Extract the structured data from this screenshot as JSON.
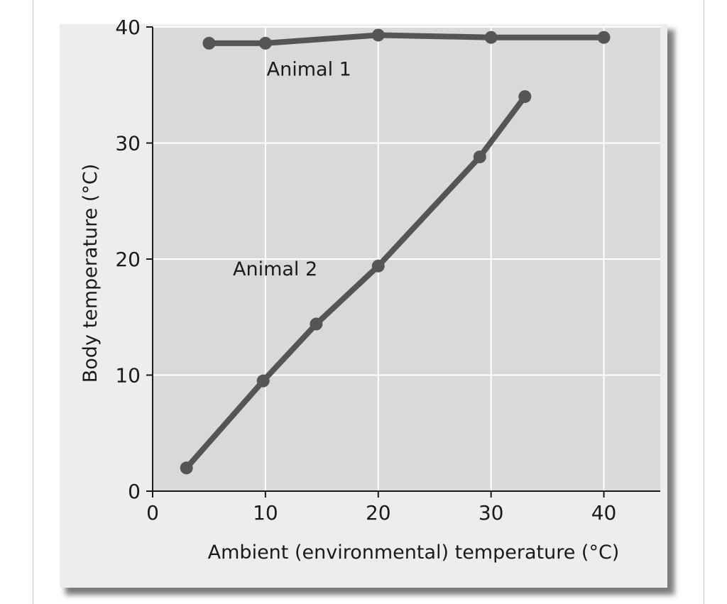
{
  "chart_data": {
    "type": "line",
    "xlabel": "Ambient (environmental) temperature (°C)",
    "ylabel": "Body temperature (°C)",
    "xlim": [
      0,
      45
    ],
    "ylim": [
      0,
      40
    ],
    "x_ticks": [
      0,
      10,
      20,
      30,
      40
    ],
    "y_ticks": [
      0,
      10,
      20,
      30,
      40
    ],
    "grid": true,
    "colors": {
      "plot_background": "#d9d9d9",
      "card_background": "#ededed",
      "series": "#555555",
      "grid": "#ffffff",
      "axis": "#1a1a1a"
    },
    "series": [
      {
        "name": "Animal 1",
        "label_at": [
          12,
          35.8
        ],
        "points": [
          [
            5,
            38.6
          ],
          [
            10,
            38.6
          ],
          [
            20,
            39.3
          ],
          [
            30,
            39.1
          ],
          [
            40,
            39.1
          ]
        ]
      },
      {
        "name": "Animal 2",
        "label_at": [
          9,
          18.6
        ],
        "points": [
          [
            3,
            2
          ],
          [
            9.8,
            9.5
          ],
          [
            14.5,
            14.4
          ],
          [
            20,
            19.4
          ],
          [
            29,
            28.8
          ],
          [
            33,
            34
          ]
        ]
      }
    ]
  }
}
